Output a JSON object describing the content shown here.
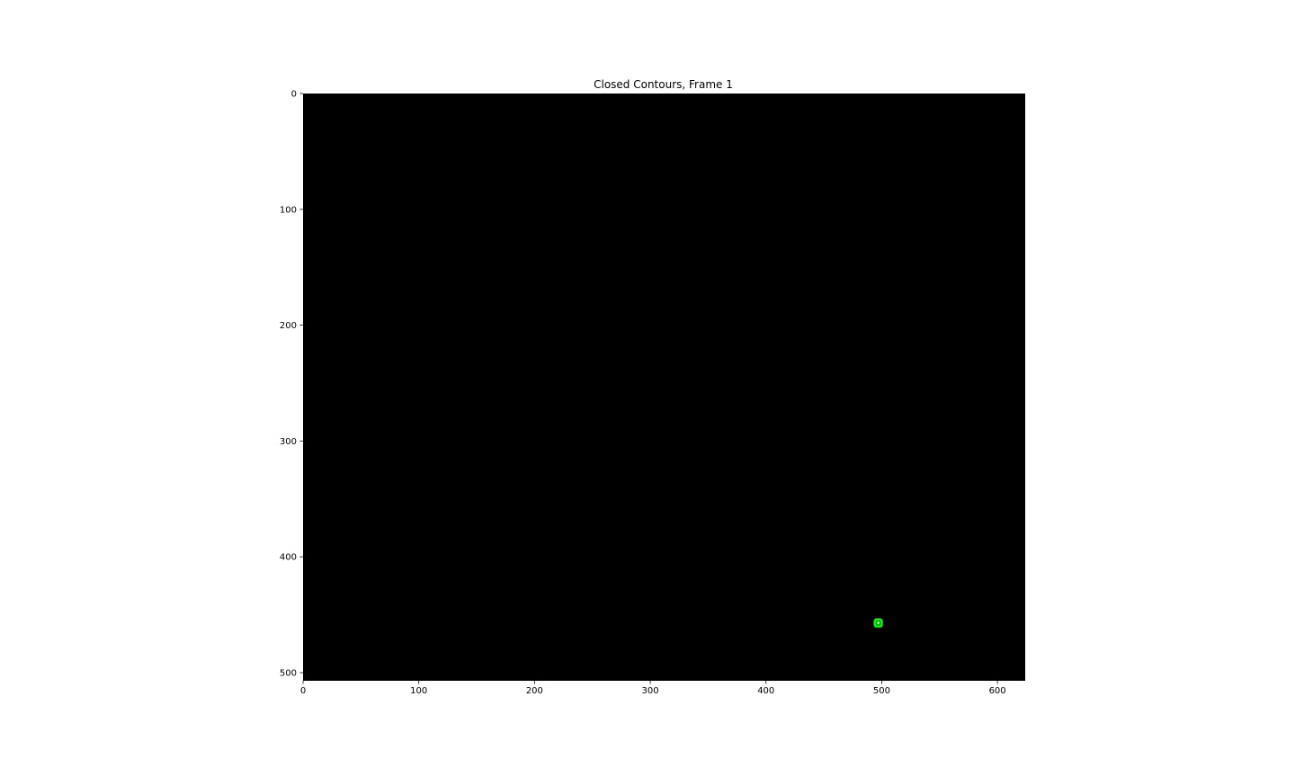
{
  "figure": {
    "title": "Closed Contours, Frame 1"
  },
  "image": {
    "width": 624,
    "height": 507,
    "background_color": "#000000"
  },
  "axes": {
    "x_ticks": [
      0,
      100,
      200,
      300,
      400,
      500,
      600
    ],
    "y_ticks": [
      0,
      100,
      200,
      300,
      400,
      500
    ]
  },
  "contours": [
    {
      "center": [
        497,
        457
      ],
      "size": [
        6,
        6
      ],
      "color": "#00ff00",
      "centroid_marker": true
    }
  ]
}
